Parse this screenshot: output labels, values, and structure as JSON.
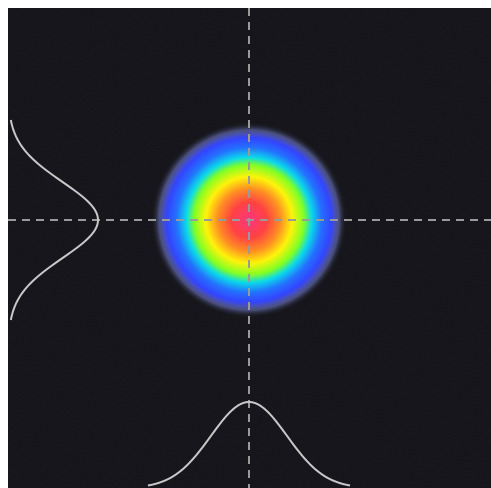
{
  "beam_profiler": {
    "background_color": "#0c0c12",
    "crosshair_color": "#9a9a9a",
    "profile_curve_color": "#c8c8c8",
    "colormap": [
      "#ffffff",
      "#3a7bff",
      "#00c8ff",
      "#7cff00",
      "#ffff00",
      "#ff9a00",
      "#ff2a2a",
      "#ff2a6a"
    ],
    "beam_shape": "circular-gaussian",
    "horizontal_profile": "gaussian",
    "vertical_profile": "gaussian",
    "crosshair_style": "dashed"
  }
}
